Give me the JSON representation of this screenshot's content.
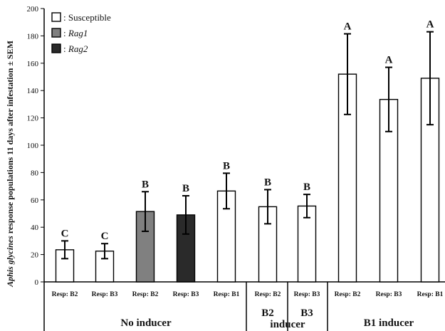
{
  "chart_data": {
    "type": "bar",
    "ylabel_italic": "Aphis glycines",
    "ylabel_rest": " response populations 11 days after infestation ± SEM",
    "ylim": [
      0,
      200
    ],
    "yticks": [
      0,
      20,
      40,
      60,
      80,
      100,
      120,
      140,
      160,
      180,
      200
    ],
    "legend": [
      {
        "name": "Susceptible",
        "prefix": ": ",
        "italic": false,
        "color": "#ffffff"
      },
      {
        "name": "Rag1",
        "prefix": ": ",
        "italic": true,
        "color": "#808080"
      },
      {
        "name": "Rag2",
        "prefix": ": ",
        "italic": true,
        "color": "#2a2a2a"
      }
    ],
    "bars": [
      {
        "label": "Resp: B2",
        "value": 23.5,
        "error": 6.5,
        "sig": "C",
        "color": "#ffffff"
      },
      {
        "label": "Resp: B3",
        "value": 22.5,
        "error": 5.5,
        "sig": "C",
        "color": "#ffffff"
      },
      {
        "label": "Resp: B2",
        "value": 51.5,
        "error": 14.5,
        "sig": "B",
        "color": "#808080"
      },
      {
        "label": "Resp: B3",
        "value": 49,
        "error": 14,
        "sig": "B",
        "color": "#2a2a2a"
      },
      {
        "label": "Resp: B1",
        "value": 66.5,
        "error": 13,
        "sig": "B",
        "color": "#ffffff"
      },
      {
        "label": "Resp: B2",
        "value": 55,
        "error": 12.5,
        "sig": "B",
        "color": "#ffffff"
      },
      {
        "label": "Resp: B3",
        "value": 55.5,
        "error": 8.5,
        "sig": "B",
        "color": "#ffffff"
      },
      {
        "label": "Resp: B2",
        "value": 152,
        "error": 29.5,
        "sig": "A",
        "color": "#ffffff"
      },
      {
        "label": "Resp: B3",
        "value": 133.5,
        "error": 23.5,
        "sig": "A",
        "color": "#ffffff"
      },
      {
        "label": "Resp: B1",
        "value": 149,
        "error": 34,
        "sig": "A",
        "color": "#ffffff"
      }
    ],
    "groups": [
      {
        "label": "No inducer",
        "bar_range": [
          0,
          4
        ]
      },
      {
        "label": "B2",
        "sublabel": "",
        "bar_range": [
          5,
          5
        ]
      },
      {
        "label": "B3",
        "sublabel": "",
        "bar_range": [
          6,
          6
        ]
      },
      {
        "label": "B1 inducer",
        "bar_range": [
          7,
          9
        ]
      }
    ],
    "shared_group_label": "inducer"
  }
}
